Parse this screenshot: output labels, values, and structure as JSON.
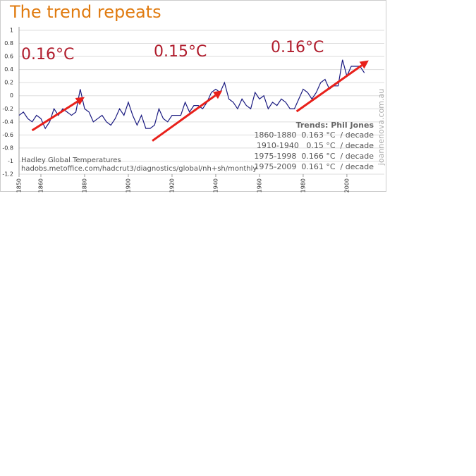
{
  "chart_data": {
    "type": "line",
    "title": "The trend repeats",
    "x": [
      1850,
      1852,
      1854,
      1856,
      1858,
      1860,
      1862,
      1864,
      1866,
      1868,
      1870,
      1872,
      1874,
      1876,
      1878,
      1880,
      1882,
      1884,
      1886,
      1888,
      1890,
      1892,
      1894,
      1896,
      1898,
      1900,
      1902,
      1904,
      1906,
      1908,
      1910,
      1912,
      1914,
      1916,
      1918,
      1920,
      1922,
      1924,
      1926,
      1928,
      1930,
      1932,
      1934,
      1936,
      1938,
      1940,
      1942,
      1944,
      1946,
      1948,
      1950,
      1952,
      1954,
      1956,
      1958,
      1960,
      1962,
      1964,
      1966,
      1968,
      1970,
      1972,
      1974,
      1976,
      1978,
      1980,
      1982,
      1984,
      1986,
      1988,
      1990,
      1992,
      1994,
      1996,
      1998,
      2000,
      2002,
      2004,
      2006,
      2008
    ],
    "series": [
      {
        "color": "#1a1a80",
        "values": [
          -0.3,
          -0.25,
          -0.35,
          -0.4,
          -0.3,
          -0.35,
          -0.5,
          -0.4,
          -0.2,
          -0.3,
          -0.2,
          -0.25,
          -0.3,
          -0.25,
          0.1,
          -0.2,
          -0.25,
          -0.4,
          -0.35,
          -0.3,
          -0.4,
          -0.45,
          -0.35,
          -0.2,
          -0.3,
          -0.1,
          -0.3,
          -0.45,
          -0.3,
          -0.5,
          -0.5,
          -0.45,
          -0.2,
          -0.35,
          -0.4,
          -0.3,
          -0.3,
          -0.3,
          -0.1,
          -0.25,
          -0.15,
          -0.15,
          -0.2,
          -0.1,
          0.05,
          0.1,
          0.05,
          0.2,
          -0.05,
          -0.1,
          -0.2,
          -0.05,
          -0.15,
          -0.2,
          0.05,
          -0.05,
          0,
          -0.2,
          -0.1,
          -0.15,
          -0.05,
          -0.1,
          -0.2,
          -0.2,
          -0.05,
          0.1,
          0.05,
          -0.05,
          0.05,
          0.2,
          0.25,
          0.1,
          0.15,
          0.15,
          0.55,
          0.3,
          0.45,
          0.45,
          0.45,
          0.35
        ]
      }
    ],
    "xlim": [
      1850,
      2011
    ],
    "xticks": [
      1850,
      1860,
      1880,
      1900,
      1920,
      1940,
      1960,
      1980,
      2000
    ],
    "ylim": [
      -1.2,
      1
    ],
    "yticks": [
      -1.2,
      -1,
      -0.8,
      -0.6,
      -0.4,
      -0.2,
      0,
      0.2,
      0.4,
      0.6,
      0.8,
      1
    ],
    "grid": true,
    "trend_arrows": [
      {
        "color": "#e8201a",
        "x": [
          1856,
          1880
        ],
        "y": [
          -0.53,
          -0.02
        ]
      },
      {
        "color": "#e8201a",
        "x": [
          1911,
          1943
        ],
        "y": [
          -0.69,
          0.08
        ]
      },
      {
        "color": "#e8201a",
        "x": [
          1977,
          2010
        ],
        "y": [
          -0.24,
          0.54
        ]
      }
    ],
    "trend_labels": [
      "0.16°C",
      "0.15°C",
      "0.16°C"
    ],
    "trends_box": {
      "title": "Trends: Phil Jones",
      "rows": [
        "1860-1880  0.163 °C  / decade",
        "1910-1940   0.15 °C  / decade",
        "1975-1998  0.166 °C  / decade",
        "1975-2009  0.161 °C  / decade"
      ]
    },
    "source": [
      "Hadley Global Temperatures",
      "hadobs.metoffice.com/hadcrut3/diagnostics/global/nh+sh/monthly"
    ],
    "watermark": "joannenova.com.au"
  }
}
